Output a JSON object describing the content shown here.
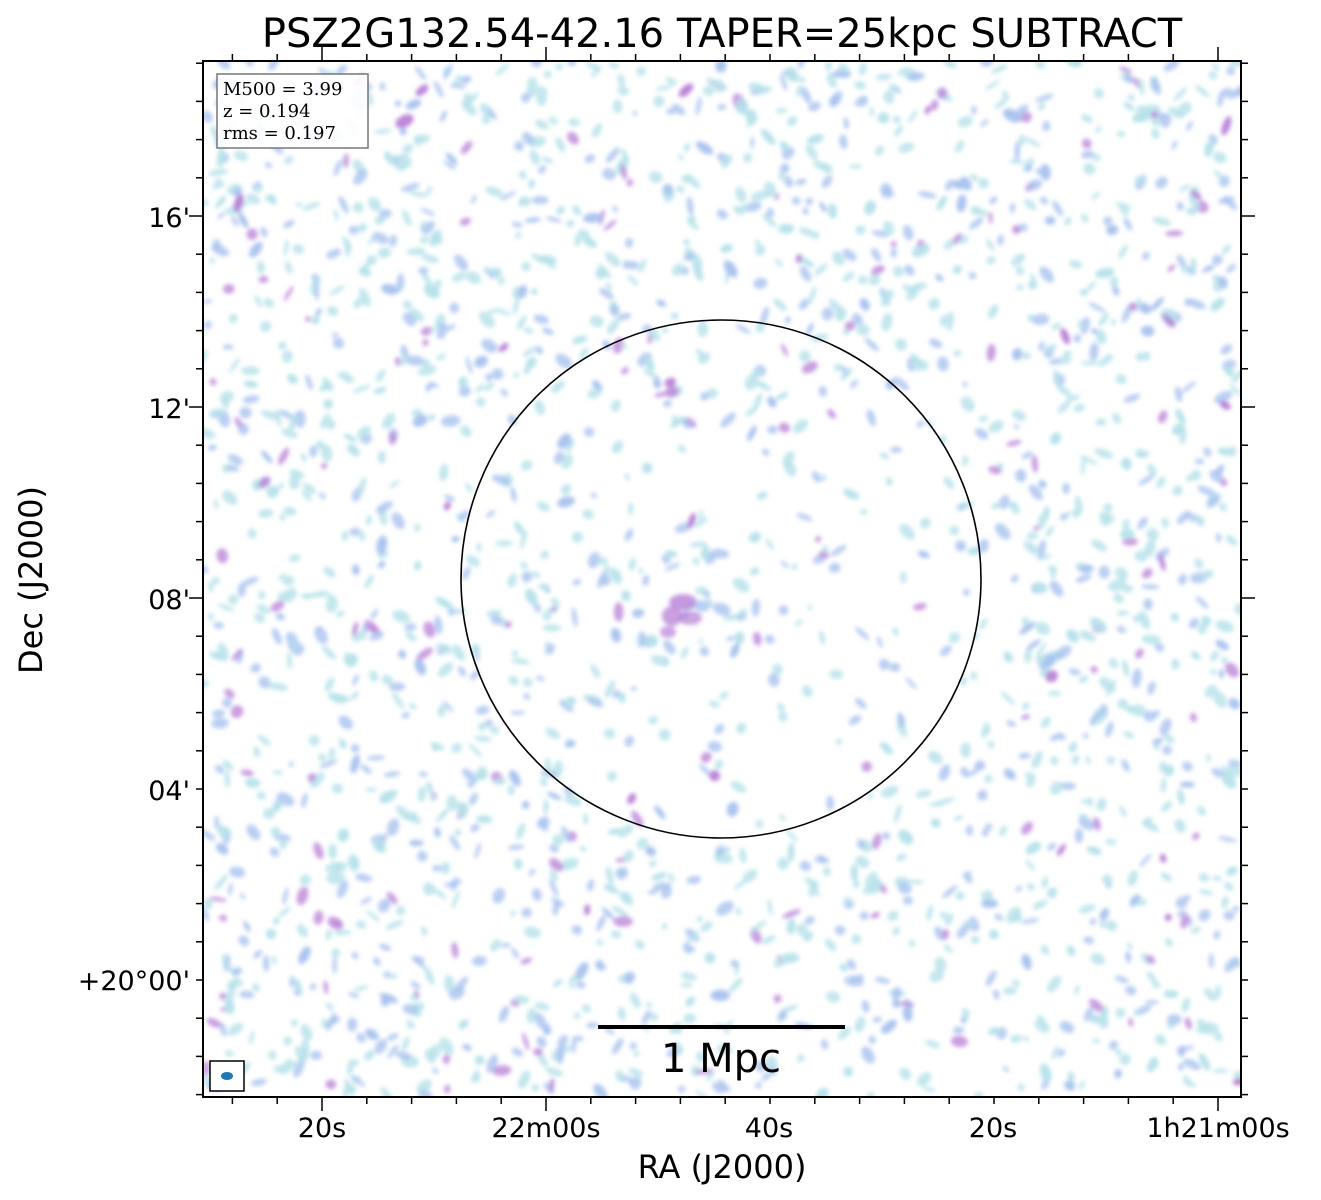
{
  "title": "PSZ2G132.54-42.16 TAPER=25kpc SUBTRACT",
  "axes": {
    "xlabel": "RA (J2000)",
    "ylabel": "Dec (J2000)",
    "ra_ticks": [
      "20s",
      "22m00s",
      "40s",
      "20s",
      "1h21m00s"
    ],
    "dec_ticks": [
      "16'",
      "12'",
      "08'",
      "04'",
      "+20°00'"
    ]
  },
  "info_box": {
    "lines": [
      "M500 = 3.99",
      "z = 0.194",
      "rms = 0.197"
    ]
  },
  "scale_bar": {
    "label": "1 Mpc"
  },
  "colors": {
    "low_emission": "#b9e3ea",
    "mid_emission": "#a9c3ef",
    "high_emission": "#b87fd6",
    "circle": "#000000",
    "beam": "#1f77b4"
  }
}
